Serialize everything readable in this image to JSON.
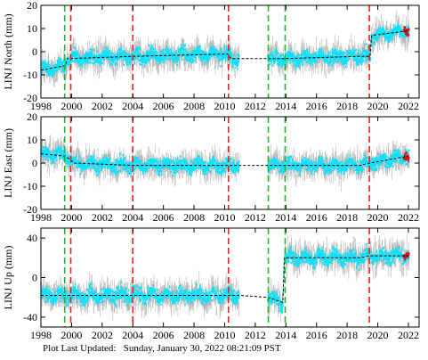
{
  "chart_data": [
    {
      "type": "scatter",
      "title": "",
      "ylabel": "LINJ North (mm)",
      "xlim": [
        1998,
        2022.7
      ],
      "ylim": [
        -20,
        20
      ],
      "yticks": [
        -20,
        -10,
        0,
        10,
        20
      ],
      "xticks": [
        1998,
        2000,
        2002,
        2004,
        2006,
        2008,
        2010,
        2012,
        2014,
        2016,
        2018,
        2020,
        2022
      ],
      "grid": false,
      "colors": {
        "raw": "#b4b4b4",
        "filtered": "#00e5ff",
        "recent": "#dd1111",
        "trend": "#000000"
      },
      "trend": {
        "x": [
          1998.0,
          1999.6,
          1999.7,
          2004.0,
          2010.2,
          2010.4,
          2011.0,
          2012.8,
          2013.8,
          2018.8,
          2019.5,
          2019.6,
          2022.0
        ],
        "y": [
          -8,
          -6,
          -3,
          -2,
          -1,
          -3,
          -3,
          -3,
          -3,
          -2,
          -2,
          7,
          9
        ]
      },
      "gaps": [
        [
          2010.95,
          2012.8
        ]
      ]
    },
    {
      "type": "scatter",
      "title": "",
      "ylabel": "LINJ East (mm)",
      "xlim": [
        1998,
        2022.7
      ],
      "ylim": [
        -20,
        20
      ],
      "yticks": [
        -20,
        -10,
        0,
        10,
        20
      ],
      "xticks": [
        1998,
        2000,
        2002,
        2004,
        2006,
        2008,
        2010,
        2012,
        2014,
        2016,
        2018,
        2020,
        2022
      ],
      "grid": false,
      "colors": {
        "raw": "#b4b4b4",
        "filtered": "#00e5ff",
        "recent": "#dd1111",
        "trend": "#000000"
      },
      "trend": {
        "x": [
          1998.0,
          1999.6,
          2000.2,
          2004.0,
          2010.2,
          2010.4,
          2011.0,
          2012.8,
          2013.8,
          2018.8,
          2019.5,
          2022.0
        ],
        "y": [
          4,
          3,
          0,
          -1,
          -1,
          -1,
          -1,
          -1,
          -1,
          -1,
          0,
          3
        ]
      },
      "gaps": [
        [
          2010.95,
          2012.8
        ]
      ]
    },
    {
      "type": "scatter",
      "title": "",
      "ylabel": "LINJ Up (mm)",
      "xlim": [
        1998,
        2022.7
      ],
      "ylim": [
        -50,
        50
      ],
      "yticks": [
        -40,
        0,
        40
      ],
      "xticks": [
        1998,
        2000,
        2002,
        2004,
        2006,
        2008,
        2010,
        2012,
        2014,
        2016,
        2018,
        2020,
        2022
      ],
      "grid": false,
      "colors": {
        "raw": "#b4b4b4",
        "filtered": "#00e5ff",
        "recent": "#dd1111",
        "trend": "#000000"
      },
      "trend": {
        "x": [
          1998.0,
          1999.6,
          2004.0,
          2010.2,
          2010.4,
          2011.0,
          2012.8,
          2013.8,
          2013.9,
          2018.8,
          2019.5,
          2022.0
        ],
        "y": [
          -18,
          -18,
          -18,
          -18,
          -18,
          -18,
          -20,
          -25,
          20,
          20,
          22,
          22
        ]
      },
      "gaps": [
        [
          2010.95,
          2012.8
        ]
      ]
    }
  ],
  "event_lines": {
    "red": [
      1999.95,
      2004.0,
      2010.25,
      2019.45
    ],
    "green": [
      1999.55,
      2012.85,
      2013.95
    ]
  },
  "footer": {
    "label": "Plot Last Updated:",
    "value": "Sunday, January 30, 2022 08:21:09 PST"
  }
}
